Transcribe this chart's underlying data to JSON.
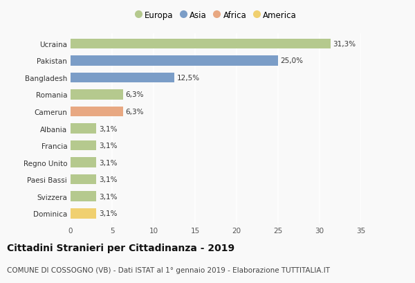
{
  "countries": [
    "Ucraina",
    "Pakistan",
    "Bangladesh",
    "Romania",
    "Camerun",
    "Albania",
    "Francia",
    "Regno Unito",
    "Paesi Bassi",
    "Svizzera",
    "Dominica"
  ],
  "values": [
    31.3,
    25.0,
    12.5,
    6.3,
    6.3,
    3.1,
    3.1,
    3.1,
    3.1,
    3.1,
    3.1
  ],
  "labels": [
    "31,3%",
    "25,0%",
    "12,5%",
    "6,3%",
    "6,3%",
    "3,1%",
    "3,1%",
    "3,1%",
    "3,1%",
    "3,1%",
    "3,1%"
  ],
  "continents": [
    "Europa",
    "Asia",
    "Asia",
    "Europa",
    "Africa",
    "Europa",
    "Europa",
    "Europa",
    "Europa",
    "Europa",
    "America"
  ],
  "colors": {
    "Europa": "#b5c98e",
    "Asia": "#7b9dc7",
    "Africa": "#e8a882",
    "America": "#f0d070"
  },
  "legend_order": [
    "Europa",
    "Asia",
    "Africa",
    "America"
  ],
  "xlim": [
    0,
    35
  ],
  "xticks": [
    0,
    5,
    10,
    15,
    20,
    25,
    30,
    35
  ],
  "title": "Cittadini Stranieri per Cittadinanza - 2019",
  "subtitle": "COMUNE DI COSSOGNO (VB) - Dati ISTAT al 1° gennaio 2019 - Elaborazione TUTTITALIA.IT",
  "background_color": "#f9f9f9",
  "grid_color": "#ffffff",
  "bar_height": 0.6,
  "title_fontsize": 10,
  "subtitle_fontsize": 7.5,
  "label_fontsize": 7.5,
  "tick_fontsize": 7.5,
  "legend_fontsize": 8.5
}
